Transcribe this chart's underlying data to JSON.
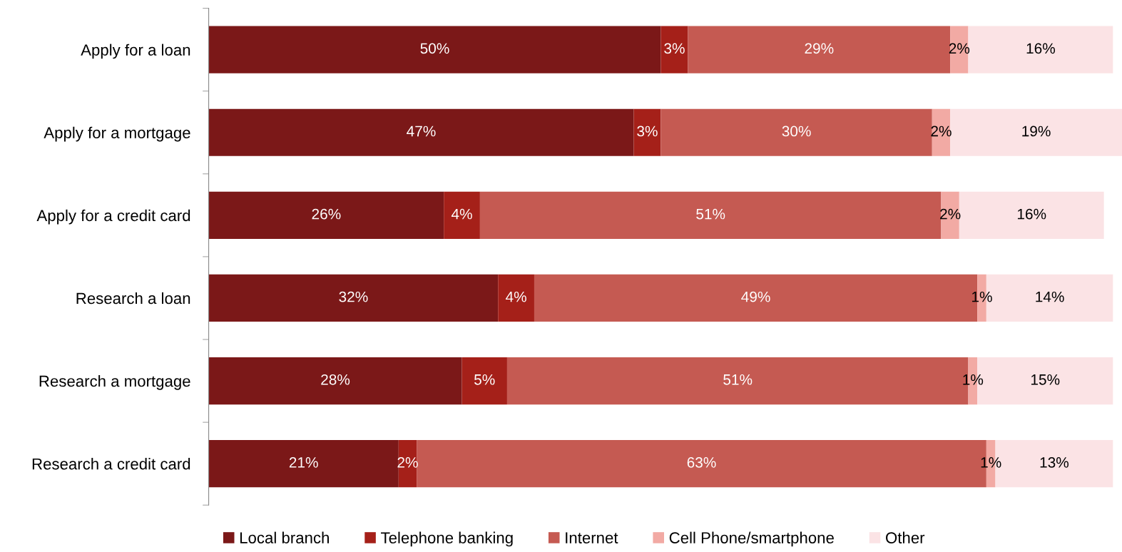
{
  "chart_data": {
    "type": "bar",
    "orientation": "horizontal",
    "stacked": true,
    "legend": "bottom",
    "grid": false,
    "categories": [
      "Apply for a loan",
      "Apply for a mortgage",
      "Apply for a credit card",
      "Research a loan",
      "Research a mortgage",
      "Research a credit card"
    ],
    "series": [
      {
        "name": "Local branch",
        "color": "#7b1818",
        "values": [
          50,
          47,
          26,
          32,
          28,
          21
        ],
        "value_labels": [
          "50%",
          "47%",
          "26%",
          "32%",
          "28%",
          "21%"
        ]
      },
      {
        "name": "Telephone banking",
        "color": "#a52019",
        "values": [
          3,
          3,
          4,
          4,
          5,
          2
        ],
        "value_labels": [
          "3%",
          "3%",
          "4%",
          "4%",
          "5%",
          "2%"
        ]
      },
      {
        "name": "Internet",
        "color": "#c55a52",
        "values": [
          29,
          30,
          51,
          49,
          51,
          63
        ],
        "value_labels": [
          "29%",
          "30%",
          "51%",
          "49%",
          "51%",
          "63%"
        ]
      },
      {
        "name": "Cell Phone/smartphone",
        "color": "#f2aaa4",
        "values": [
          2,
          2,
          2,
          1,
          1,
          1
        ],
        "value_labels": [
          "2%",
          "2%",
          "2%",
          "1%",
          "1%",
          "1%"
        ]
      },
      {
        "name": "Other",
        "color": "#fbe3e5",
        "values": [
          16,
          19,
          16,
          14,
          15,
          13
        ],
        "value_labels": [
          "16%",
          "19%",
          "16%",
          "14%",
          "15%",
          "13%"
        ]
      }
    ]
  }
}
